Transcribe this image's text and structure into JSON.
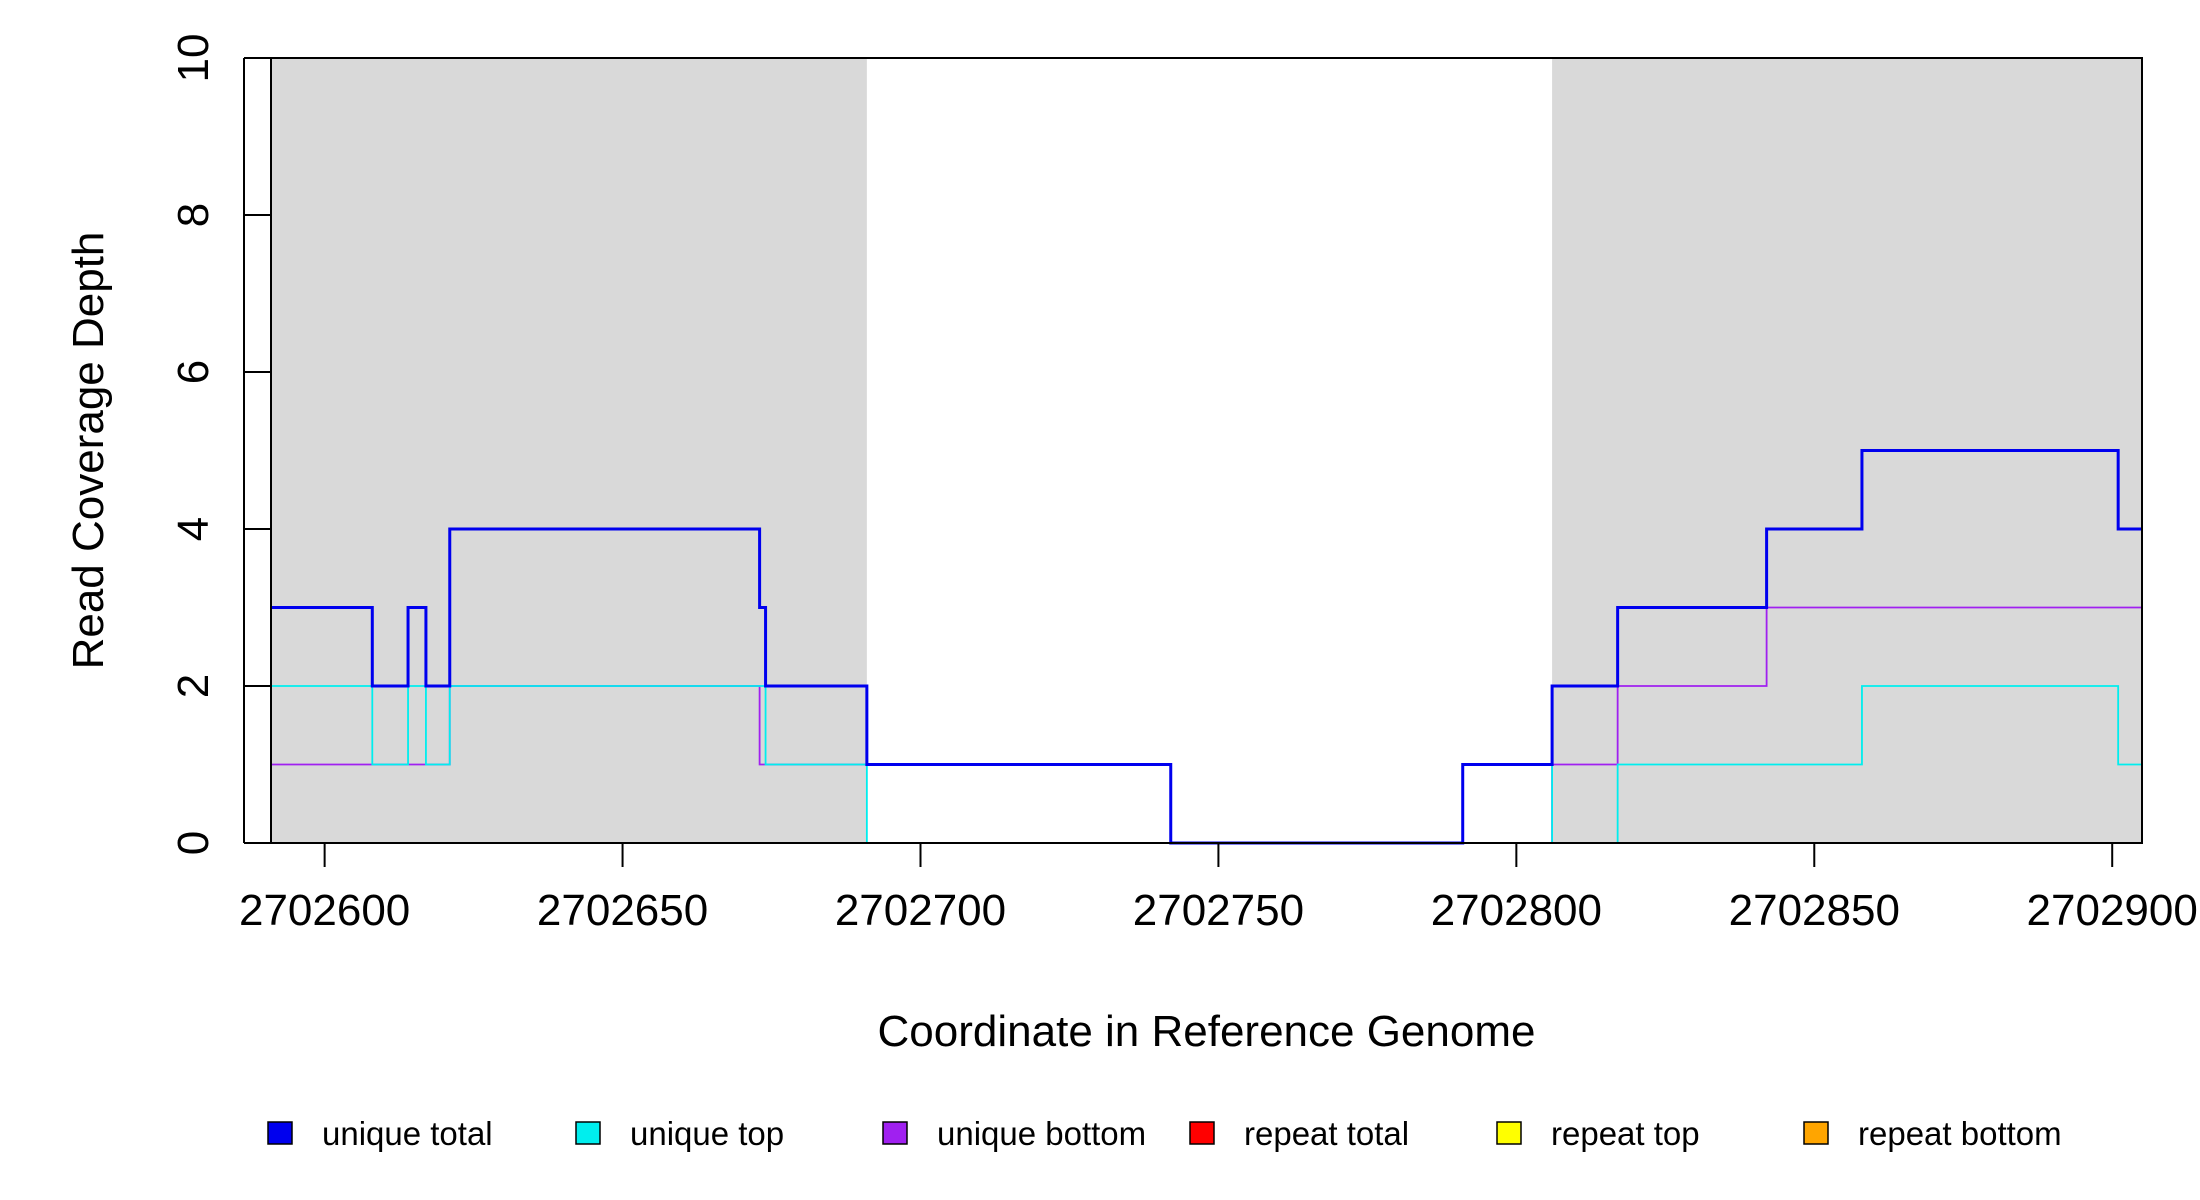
{
  "chart_data": {
    "type": "line",
    "step": true,
    "xlabel": "Coordinate in Reference Genome",
    "ylabel": "Read Coverage Depth",
    "xlim": [
      2702591,
      2702905
    ],
    "ylim": [
      0,
      10
    ],
    "xticks": [
      2702600,
      2702650,
      2702700,
      2702750,
      2702800,
      2702850,
      2702900
    ],
    "yticks": [
      0,
      2,
      4,
      6,
      8,
      10
    ],
    "grid": false,
    "legend_position": "bottom",
    "shaded_regions": [
      {
        "x": [
          2702591,
          2702691
        ],
        "color": "#d9d9d9"
      },
      {
        "x": [
          2702806,
          2702905
        ],
        "color": "#d9d9d9"
      }
    ],
    "series": [
      {
        "name": "unique total",
        "color": "#0000ee",
        "points": [
          [
            2702591,
            3
          ],
          [
            2702608,
            2
          ],
          [
            2702614,
            3
          ],
          [
            2702617,
            2
          ],
          [
            2702621,
            4
          ],
          [
            2702673,
            3
          ],
          [
            2702674,
            2
          ],
          [
            2702691,
            1
          ],
          [
            2702742,
            0
          ],
          [
            2702791,
            1
          ],
          [
            2702806,
            2
          ],
          [
            2702817,
            3
          ],
          [
            2702842,
            4
          ],
          [
            2702858,
            5
          ],
          [
            2702901,
            4
          ],
          [
            2702905,
            4
          ]
        ]
      },
      {
        "name": "unique top",
        "color": "#00eeee",
        "points": [
          [
            2702591,
            2
          ],
          [
            2702608,
            1
          ],
          [
            2702614,
            2
          ],
          [
            2702617,
            1
          ],
          [
            2702621,
            2
          ],
          [
            2702674,
            1
          ],
          [
            2702691,
            0
          ],
          [
            2702791,
            1
          ],
          [
            2702806,
            0
          ],
          [
            2702817,
            1
          ],
          [
            2702858,
            2
          ],
          [
            2702901,
            1
          ],
          [
            2702905,
            1
          ]
        ]
      },
      {
        "name": "unique bottom",
        "color": "#a020f0",
        "points": [
          [
            2702591,
            1
          ],
          [
            2702621,
            2
          ],
          [
            2702673,
            1
          ],
          [
            2702742,
            0
          ],
          [
            2702806,
            1
          ],
          [
            2702817,
            2
          ],
          [
            2702842,
            3
          ],
          [
            2702905,
            3
          ]
        ]
      },
      {
        "name": "repeat total",
        "color": "#ff0000",
        "points": [
          [
            2702591,
            0
          ],
          [
            2702905,
            0
          ]
        ]
      },
      {
        "name": "repeat top",
        "color": "#ffff00",
        "points": [
          [
            2702591,
            0
          ],
          [
            2702905,
            0
          ]
        ]
      },
      {
        "name": "repeat bottom",
        "color": "#ffa500",
        "points": [
          [
            2702591,
            0
          ],
          [
            2702905,
            0
          ]
        ]
      }
    ]
  }
}
